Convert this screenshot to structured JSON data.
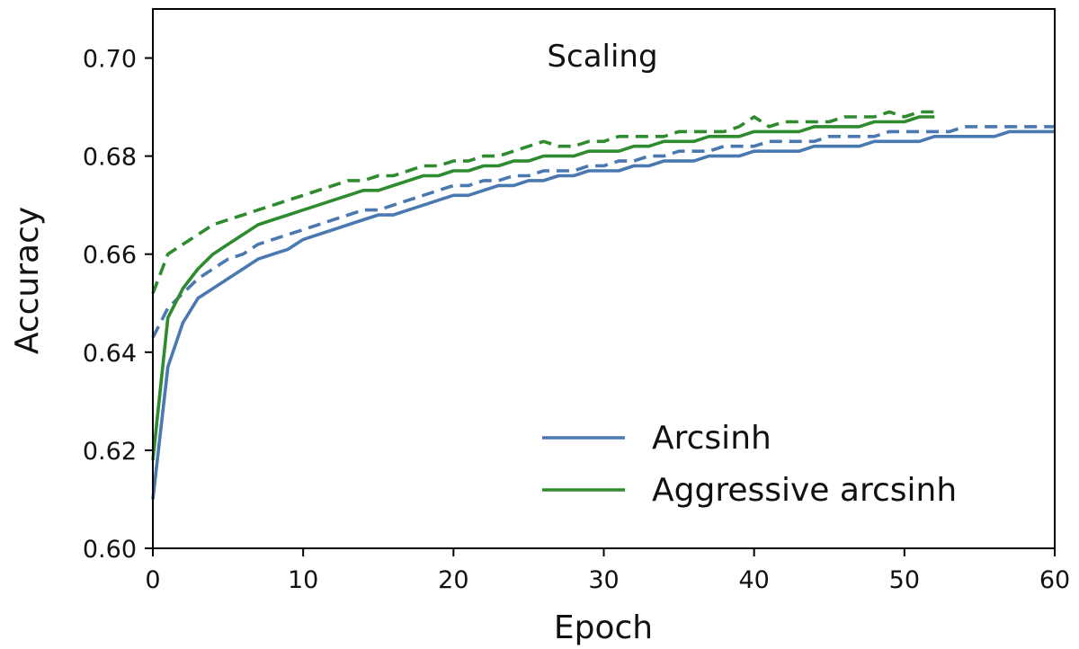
{
  "chart_data": {
    "type": "line",
    "title": "Scaling",
    "xlabel": "Epoch",
    "ylabel": "Accuracy",
    "xlim": [
      0,
      60
    ],
    "ylim": [
      0.6,
      0.71
    ],
    "xticks": [
      0,
      10,
      20,
      30,
      40,
      50,
      60
    ],
    "xtick_labels": [
      "0",
      "10",
      "20",
      "30",
      "40",
      "50",
      "60"
    ],
    "yticks": [
      0.6,
      0.62,
      0.64,
      0.66,
      0.68,
      0.7
    ],
    "ytick_labels": [
      "0.60",
      "0.62",
      "0.64",
      "0.66",
      "0.68",
      "0.70"
    ],
    "grid": false,
    "legend_position": "lower-right",
    "legend": [
      {
        "label": "Arcsinh",
        "color": "#4a78b0"
      },
      {
        "label": "Aggressive arcsinh",
        "color": "#2e8b2e"
      }
    ],
    "series": [
      {
        "name": "Arcsinh",
        "color": "#4a78b0",
        "style": "solid",
        "x": [
          0,
          1,
          2,
          3,
          4,
          5,
          6,
          7,
          8,
          9,
          10,
          11,
          12,
          13,
          14,
          15,
          16,
          17,
          18,
          19,
          20,
          21,
          22,
          23,
          24,
          25,
          26,
          27,
          28,
          29,
          30,
          31,
          32,
          33,
          34,
          35,
          36,
          37,
          38,
          39,
          40,
          41,
          42,
          43,
          44,
          45,
          46,
          47,
          48,
          49,
          50,
          51,
          52,
          53,
          54,
          55,
          56,
          57,
          58,
          59,
          60
        ],
        "y": [
          0.61,
          0.637,
          0.646,
          0.651,
          0.653,
          0.655,
          0.657,
          0.659,
          0.66,
          0.661,
          0.663,
          0.664,
          0.665,
          0.666,
          0.667,
          0.668,
          0.668,
          0.669,
          0.67,
          0.671,
          0.672,
          0.672,
          0.673,
          0.674,
          0.674,
          0.675,
          0.675,
          0.676,
          0.676,
          0.677,
          0.677,
          0.677,
          0.678,
          0.678,
          0.679,
          0.679,
          0.679,
          0.68,
          0.68,
          0.68,
          0.681,
          0.681,
          0.681,
          0.681,
          0.682,
          0.682,
          0.682,
          0.682,
          0.683,
          0.683,
          0.683,
          0.683,
          0.684,
          0.684,
          0.684,
          0.684,
          0.684,
          0.685,
          0.685,
          0.685,
          0.685
        ]
      },
      {
        "name": "",
        "color": "#4a78b0",
        "style": "dashed",
        "x": [
          0,
          1,
          2,
          3,
          4,
          5,
          6,
          7,
          8,
          9,
          10,
          11,
          12,
          13,
          14,
          15,
          16,
          17,
          18,
          19,
          20,
          21,
          22,
          23,
          24,
          25,
          26,
          27,
          28,
          29,
          30,
          31,
          32,
          33,
          34,
          35,
          36,
          37,
          38,
          39,
          40,
          41,
          42,
          43,
          44,
          45,
          46,
          47,
          48,
          49,
          50,
          51,
          52,
          53,
          54,
          55,
          56,
          57,
          58,
          59,
          60
        ],
        "y": [
          0.643,
          0.649,
          0.652,
          0.655,
          0.657,
          0.659,
          0.66,
          0.662,
          0.663,
          0.664,
          0.665,
          0.666,
          0.667,
          0.668,
          0.669,
          0.669,
          0.67,
          0.671,
          0.672,
          0.673,
          0.674,
          0.674,
          0.675,
          0.675,
          0.676,
          0.676,
          0.677,
          0.677,
          0.677,
          0.678,
          0.678,
          0.679,
          0.679,
          0.68,
          0.68,
          0.681,
          0.681,
          0.681,
          0.682,
          0.682,
          0.682,
          0.683,
          0.683,
          0.683,
          0.683,
          0.684,
          0.684,
          0.684,
          0.684,
          0.685,
          0.685,
          0.685,
          0.685,
          0.685,
          0.686,
          0.686,
          0.686,
          0.686,
          0.686,
          0.686,
          0.686
        ]
      },
      {
        "name": "Aggressive arcsinh",
        "color": "#2e8b2e",
        "style": "solid",
        "x": [
          0,
          1,
          2,
          3,
          4,
          5,
          6,
          7,
          8,
          9,
          10,
          11,
          12,
          13,
          14,
          15,
          16,
          17,
          18,
          19,
          20,
          21,
          22,
          23,
          24,
          25,
          26,
          27,
          28,
          29,
          30,
          31,
          32,
          33,
          34,
          35,
          36,
          37,
          38,
          39,
          40,
          41,
          42,
          43,
          44,
          45,
          46,
          47,
          48,
          49,
          50,
          51,
          52
        ],
        "y": [
          0.618,
          0.647,
          0.653,
          0.657,
          0.66,
          0.662,
          0.664,
          0.666,
          0.667,
          0.668,
          0.669,
          0.67,
          0.671,
          0.672,
          0.673,
          0.673,
          0.674,
          0.675,
          0.676,
          0.676,
          0.677,
          0.677,
          0.678,
          0.678,
          0.679,
          0.679,
          0.68,
          0.68,
          0.68,
          0.681,
          0.681,
          0.681,
          0.682,
          0.682,
          0.683,
          0.683,
          0.683,
          0.684,
          0.684,
          0.684,
          0.685,
          0.685,
          0.685,
          0.685,
          0.686,
          0.686,
          0.686,
          0.686,
          0.687,
          0.687,
          0.687,
          0.688,
          0.688
        ]
      },
      {
        "name": "",
        "color": "#2e8b2e",
        "style": "dashed",
        "x": [
          0,
          1,
          2,
          3,
          4,
          5,
          6,
          7,
          8,
          9,
          10,
          11,
          12,
          13,
          14,
          15,
          16,
          17,
          18,
          19,
          20,
          21,
          22,
          23,
          24,
          25,
          26,
          27,
          28,
          29,
          30,
          31,
          32,
          33,
          34,
          35,
          36,
          37,
          38,
          39,
          40,
          41,
          42,
          43,
          44,
          45,
          46,
          47,
          48,
          49,
          50,
          51,
          52
        ],
        "y": [
          0.652,
          0.66,
          0.662,
          0.664,
          0.666,
          0.667,
          0.668,
          0.669,
          0.67,
          0.671,
          0.672,
          0.673,
          0.674,
          0.675,
          0.675,
          0.676,
          0.676,
          0.677,
          0.678,
          0.678,
          0.679,
          0.679,
          0.68,
          0.68,
          0.681,
          0.682,
          0.683,
          0.682,
          0.682,
          0.683,
          0.683,
          0.684,
          0.684,
          0.684,
          0.684,
          0.685,
          0.685,
          0.685,
          0.685,
          0.686,
          0.688,
          0.686,
          0.687,
          0.687,
          0.687,
          0.687,
          0.688,
          0.688,
          0.688,
          0.689,
          0.688,
          0.689,
          0.689
        ]
      }
    ]
  }
}
